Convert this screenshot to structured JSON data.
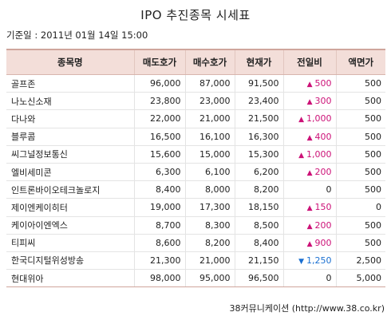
{
  "title": "IPO 추진종목 시세표",
  "date": "기준일 : 2011년 01월 14일 15:00",
  "columns": [
    "종목명",
    "매도호가",
    "매수호가",
    "현재가",
    "전일비",
    "액면가"
  ],
  "rows": [
    {
      "name": "골프존",
      "ask": "96,000",
      "bid": "87,000",
      "price": "91,500",
      "dir": "up",
      "change": "500",
      "par": "500"
    },
    {
      "name": "나노신소재",
      "ask": "23,800",
      "bid": "23,000",
      "price": "23,400",
      "dir": "up",
      "change": "300",
      "par": "500"
    },
    {
      "name": "다나와",
      "ask": "22,000",
      "bid": "21,000",
      "price": "21,500",
      "dir": "up",
      "change": "1,000",
      "par": "500"
    },
    {
      "name": "블루콤",
      "ask": "16,500",
      "bid": "16,100",
      "price": "16,300",
      "dir": "up",
      "change": "400",
      "par": "500"
    },
    {
      "name": "씨그널정보통신",
      "ask": "15,600",
      "bid": "15,000",
      "price": "15,300",
      "dir": "up",
      "change": "1,000",
      "par": "500"
    },
    {
      "name": "엘비세미콘",
      "ask": "6,300",
      "bid": "6,100",
      "price": "6,200",
      "dir": "up",
      "change": "200",
      "par": "500"
    },
    {
      "name": "인트론바이오테크놀로지",
      "ask": "8,400",
      "bid": "8,000",
      "price": "8,200",
      "dir": "none",
      "change": "0",
      "par": "500"
    },
    {
      "name": "제이엔케이히터",
      "ask": "19,000",
      "bid": "17,300",
      "price": "18,150",
      "dir": "up",
      "change": "150",
      "par": "0"
    },
    {
      "name": "케이아이엔엑스",
      "ask": "8,700",
      "bid": "8,300",
      "price": "8,500",
      "dir": "up",
      "change": "200",
      "par": "500"
    },
    {
      "name": "티피씨",
      "ask": "8,600",
      "bid": "8,200",
      "price": "8,400",
      "dir": "up",
      "change": "900",
      "par": "500"
    },
    {
      "name": "한국디지털위성방송",
      "ask": "21,300",
      "bid": "21,000",
      "price": "21,150",
      "dir": "down",
      "change": "1,250",
      "par": "2,500"
    },
    {
      "name": "현대위아",
      "ask": "98,000",
      "bid": "95,000",
      "price": "96,500",
      "dir": "none",
      "change": "0",
      "par": "5,000"
    }
  ],
  "arrows": {
    "up": "▲",
    "down": "▼"
  },
  "colors": {
    "up": "#cc1177",
    "down": "#1a6fd1",
    "header_bg": "#f3ded9"
  },
  "footer": "38커뮤니케이션 (http://www.38.co.kr)"
}
